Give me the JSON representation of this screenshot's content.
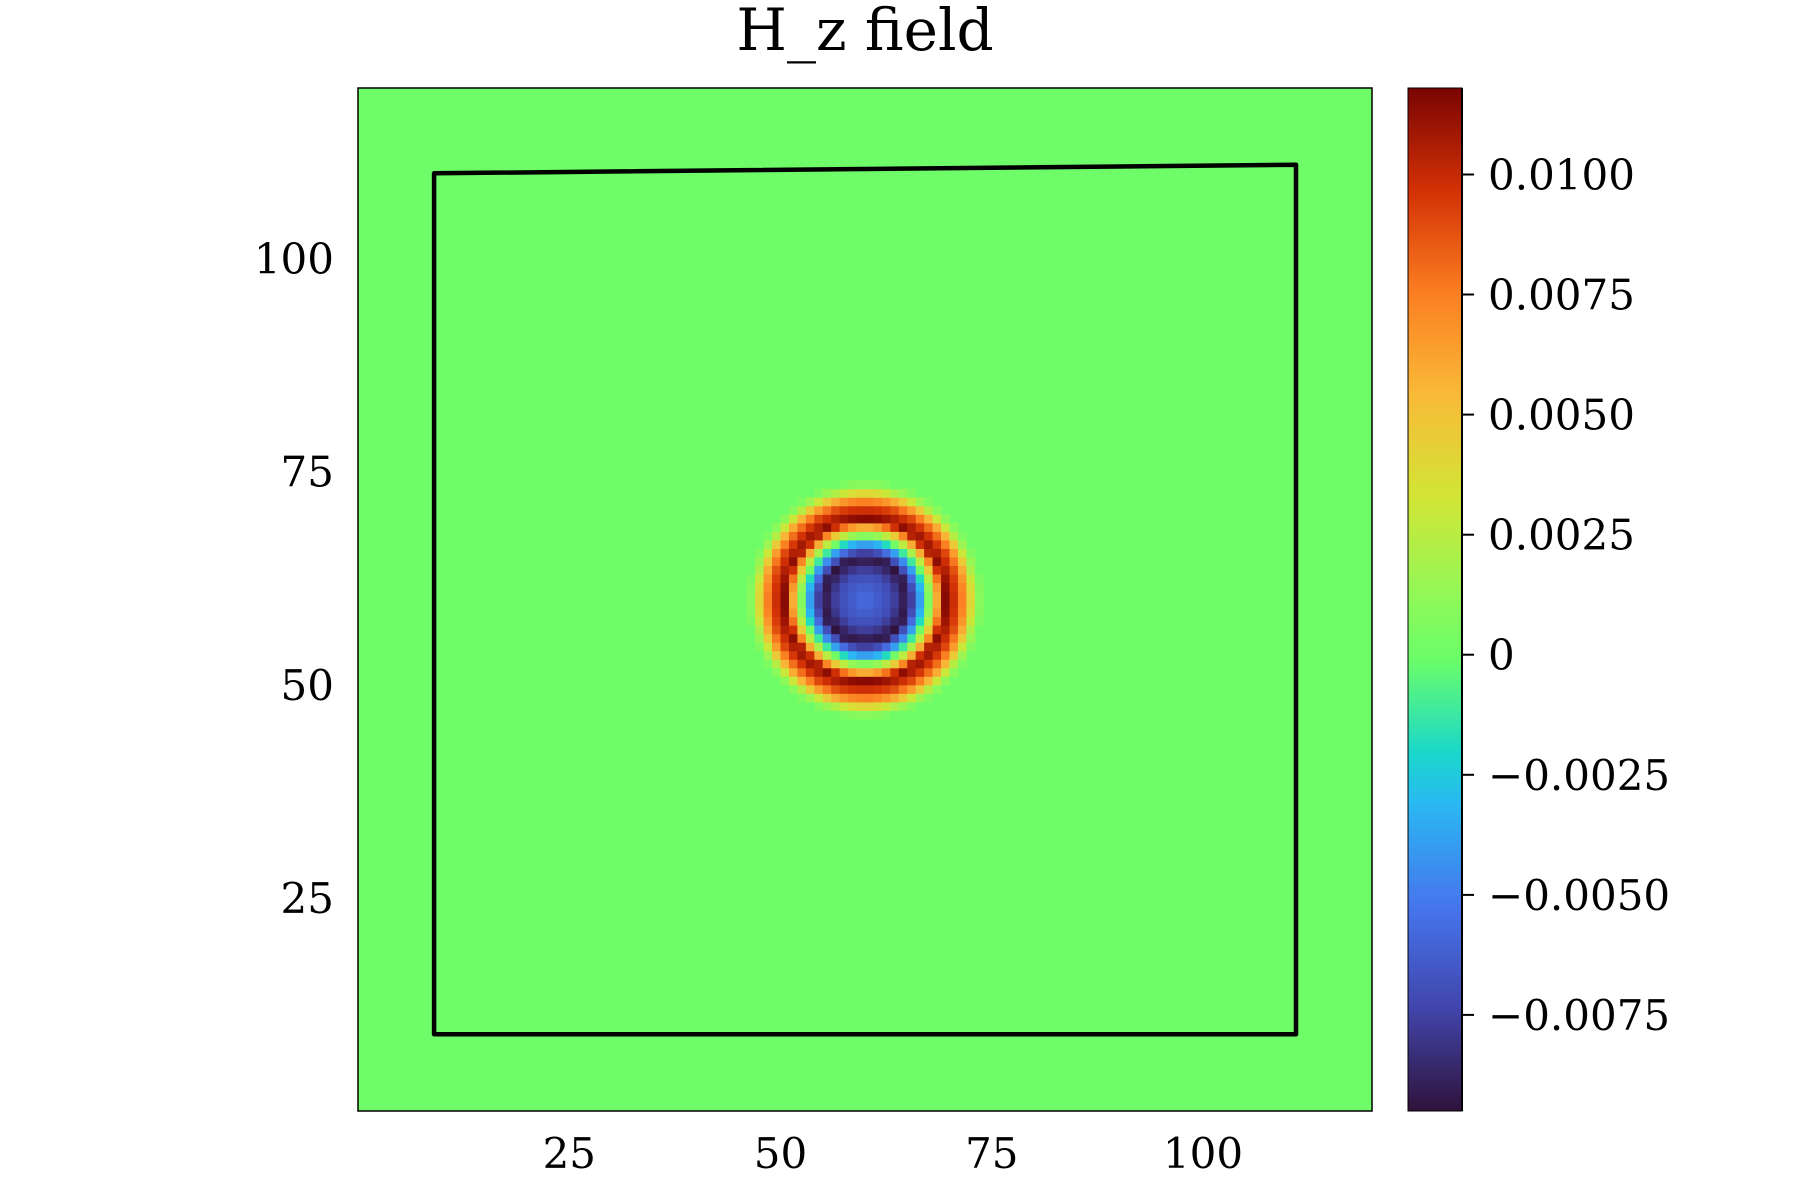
{
  "chart_data": {
    "type": "heatmap",
    "title": "H_z field",
    "xlabel": "",
    "ylabel": "",
    "xlim": [
      0,
      120
    ],
    "ylim": [
      0,
      120
    ],
    "x_ticks": [
      {
        "value": 25,
        "label": "25"
      },
      {
        "value": 50,
        "label": "50"
      },
      {
        "value": 75,
        "label": "75"
      },
      {
        "value": 100,
        "label": "100"
      }
    ],
    "y_ticks": [
      {
        "value": 25,
        "label": "25"
      },
      {
        "value": 50,
        "label": "50"
      },
      {
        "value": 75,
        "label": "75"
      },
      {
        "value": 100,
        "label": "100"
      }
    ],
    "grid": false,
    "colormap": "turbo",
    "colorbar": {
      "range": [
        -0.0095,
        0.0118
      ],
      "ticks": [
        {
          "value": 0.01,
          "label": "0.0100"
        },
        {
          "value": 0.0075,
          "label": "0.0075"
        },
        {
          "value": 0.005,
          "label": "0.0050"
        },
        {
          "value": 0.0025,
          "label": "0.0025"
        },
        {
          "value": 0,
          "label": "0"
        },
        {
          "value": -0.0025,
          "label": "−0.0025"
        },
        {
          "value": -0.005,
          "label": "−0.0050"
        },
        {
          "value": -0.0075,
          "label": "−0.0075"
        }
      ]
    },
    "background_value": 0,
    "pulse": {
      "center": [
        60,
        60
      ],
      "rings": [
        {
          "radius": 0,
          "value": -0.0055
        },
        {
          "radius": 3,
          "value": -0.007
        },
        {
          "radius": 5,
          "value": -0.0095
        },
        {
          "radius": 6.5,
          "value": -0.004
        },
        {
          "radius": 8,
          "value": 0.003
        },
        {
          "radius": 9.5,
          "value": 0.0115
        },
        {
          "radius": 11,
          "value": 0.009
        },
        {
          "radius": 12,
          "value": 0.006
        },
        {
          "radius": 13,
          "value": 0.002
        },
        {
          "radius": 14,
          "value": 0
        }
      ]
    },
    "boundary": {
      "color": "#000000",
      "points": [
        [
          9,
          9
        ],
        [
          111,
          9
        ],
        [
          111,
          111
        ],
        [
          9,
          110
        ]
      ]
    }
  }
}
